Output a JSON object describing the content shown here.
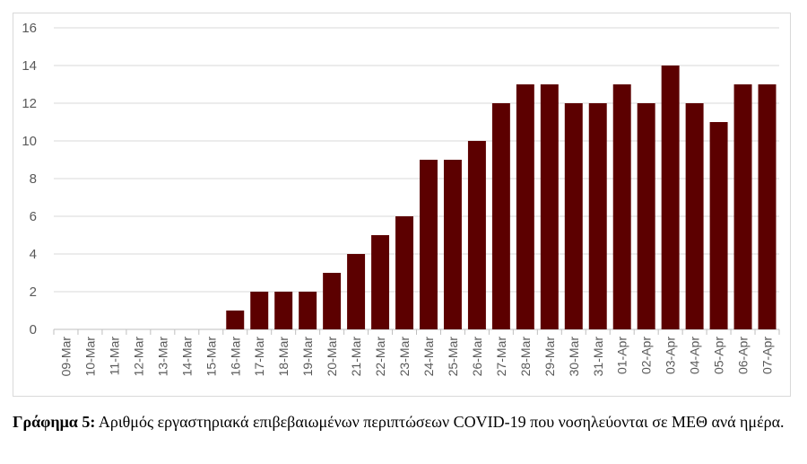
{
  "chart_data": {
    "type": "bar",
    "categories": [
      "09-Mar",
      "10-Mar",
      "11-Mar",
      "12-Mar",
      "13-Mar",
      "14-Mar",
      "15-Mar",
      "16-Mar",
      "17-Mar",
      "18-Mar",
      "19-Mar",
      "20-Mar",
      "21-Mar",
      "22-Mar",
      "23-Mar",
      "24-Mar",
      "25-Mar",
      "26-Mar",
      "27-Mar",
      "28-Mar",
      "29-Mar",
      "30-Mar",
      "31-Mar",
      "01-Apr",
      "02-Apr",
      "03-Apr",
      "04-Apr",
      "05-Apr",
      "06-Apr",
      "07-Apr"
    ],
    "values": [
      0,
      0,
      0,
      0,
      0,
      0,
      0,
      1,
      2,
      2,
      2,
      3,
      4,
      5,
      6,
      9,
      9,
      10,
      12,
      13,
      13,
      12,
      12,
      13,
      12,
      14,
      12,
      11,
      13,
      13
    ],
    "yticks": [
      "0",
      "2",
      "4",
      "6",
      "8",
      "10",
      "12",
      "14",
      "16"
    ],
    "ylim": [
      0,
      16
    ],
    "grid": true,
    "bar_color": "#5c0000",
    "grid_color": "#d9d9d9",
    "axis_color": "#bfbfbf",
    "tick_text_color": "#595959"
  },
  "caption": {
    "label": "Γράφημα 5:",
    "text": "Αριθμός εργαστηριακά επιβεβαιωμένων περιπτώσεων COVID-19 που νοσηλεύονται σε ΜΕΘ ανά ημέρα."
  }
}
